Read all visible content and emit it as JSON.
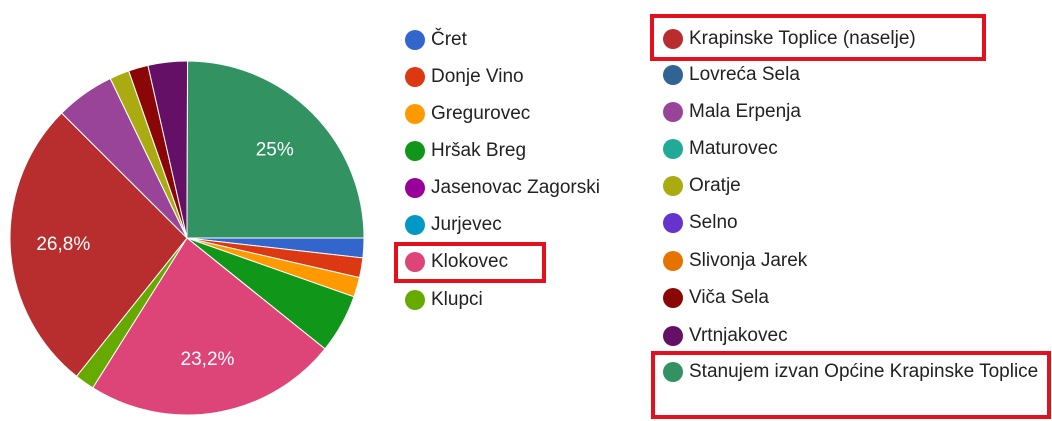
{
  "chart_data": {
    "type": "pie",
    "categories": [
      "Čret",
      "Donje Vino",
      "Gregurovec",
      "Hršak Breg",
      "Jasenovac Zagorski",
      "Jurjevec",
      "Klokovec",
      "Klupci",
      "Krapinske Toplice (naselje)",
      "Lovreća Sela",
      "Mala Erpenja",
      "Maturovec",
      "Oratje",
      "Selno",
      "Slivonja Jarek",
      "Viča Sela",
      "Vrtnjakovec",
      "Stanujem izvan Općine Krapinske Toplice"
    ],
    "values": [
      1.8,
      1.8,
      1.8,
      5.4,
      0,
      0,
      23.2,
      1.8,
      26.8,
      0,
      5.4,
      0,
      1.8,
      0,
      0,
      1.8,
      3.6,
      25
    ],
    "value_labels": [
      null,
      null,
      null,
      null,
      null,
      null,
      "23,2%",
      null,
      "26,8%",
      null,
      null,
      null,
      null,
      null,
      null,
      null,
      null,
      "25%"
    ],
    "colors": [
      "#3366cc",
      "#dc3912",
      "#ff9900",
      "#109618",
      "#990099",
      "#0099c6",
      "#dd4477",
      "#66aa00",
      "#b82e2e",
      "#316395",
      "#994499",
      "#22aa99",
      "#aaaa11",
      "#6633cc",
      "#e67300",
      "#8b0707",
      "#651067",
      "#329262"
    ],
    "legend": "right"
  }
}
